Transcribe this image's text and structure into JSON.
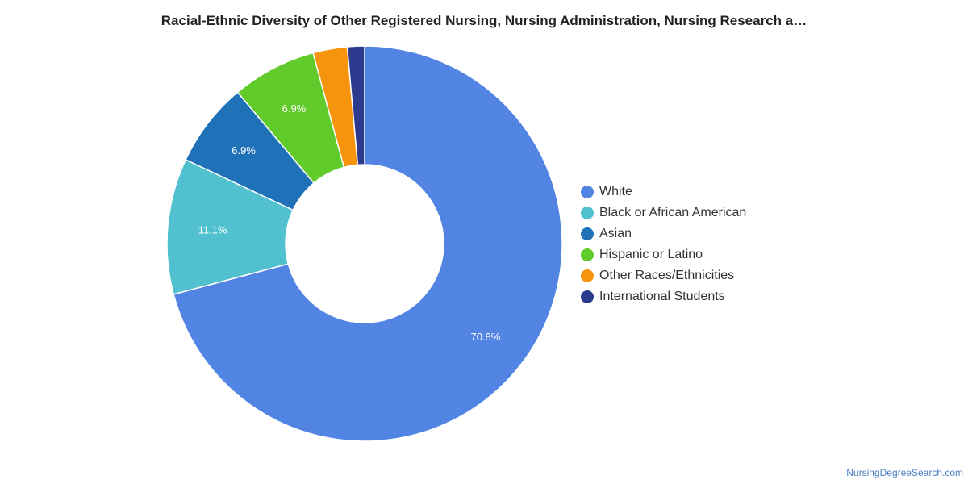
{
  "title": "Racial-Ethnic Diversity of Other Registered Nursing, Nursing Administration, Nursing Research a…",
  "credit": "NursingDegreeSearch.com",
  "chart_data": {
    "type": "pie",
    "donut": true,
    "legend_position": "right",
    "series": [
      {
        "name": "White",
        "value": 70.8,
        "label": "70.8%",
        "color": "#5285e3"
      },
      {
        "name": "Black or African American",
        "value": 11.1,
        "label": "11.1%",
        "color": "#51c1cf"
      },
      {
        "name": "Asian",
        "value": 6.9,
        "label": "6.9%",
        "color": "#1f71b8"
      },
      {
        "name": "Hispanic or Latino",
        "value": 6.9,
        "label": "6.9%",
        "color": "#60cb2a"
      },
      {
        "name": "Other Races/Ethnicities",
        "value": 2.8,
        "label": "",
        "color": "#f7940d"
      },
      {
        "name": "International Students",
        "value": 1.4,
        "label": "",
        "color": "#2b3a8c"
      }
    ]
  }
}
